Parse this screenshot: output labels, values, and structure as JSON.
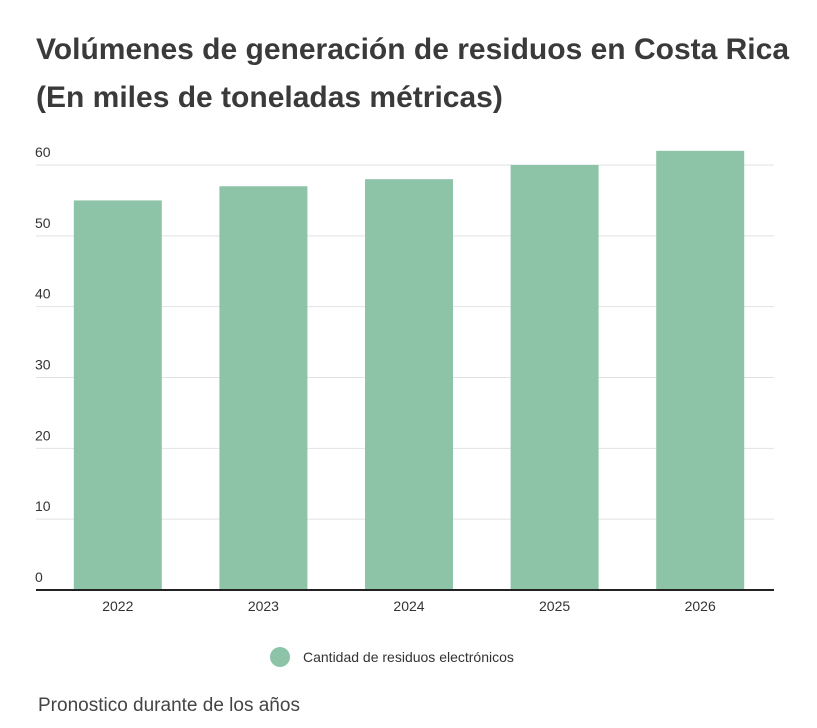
{
  "title_lines": [
    "Volúmenes de generación de residuos en Costa Rica",
    "(En miles de toneladas métricas)"
  ],
  "footnote": "Pronostico durante de los años",
  "colors": {
    "bar": "#8dc4a7",
    "grid": "#e2e2e2",
    "axis": "#222222",
    "text": "#333333"
  },
  "chart_data": {
    "type": "bar",
    "categories": [
      "2022",
      "2023",
      "2024",
      "2025",
      "2026"
    ],
    "series": [
      {
        "name": "Cantidad de residuos electrónicos",
        "values": [
          55,
          57,
          58,
          60,
          62
        ]
      }
    ],
    "yticks": [
      0,
      10,
      20,
      30,
      40,
      50,
      60
    ],
    "ylim": [
      0,
      60
    ],
    "grid": true,
    "legend_position": "bottom"
  }
}
